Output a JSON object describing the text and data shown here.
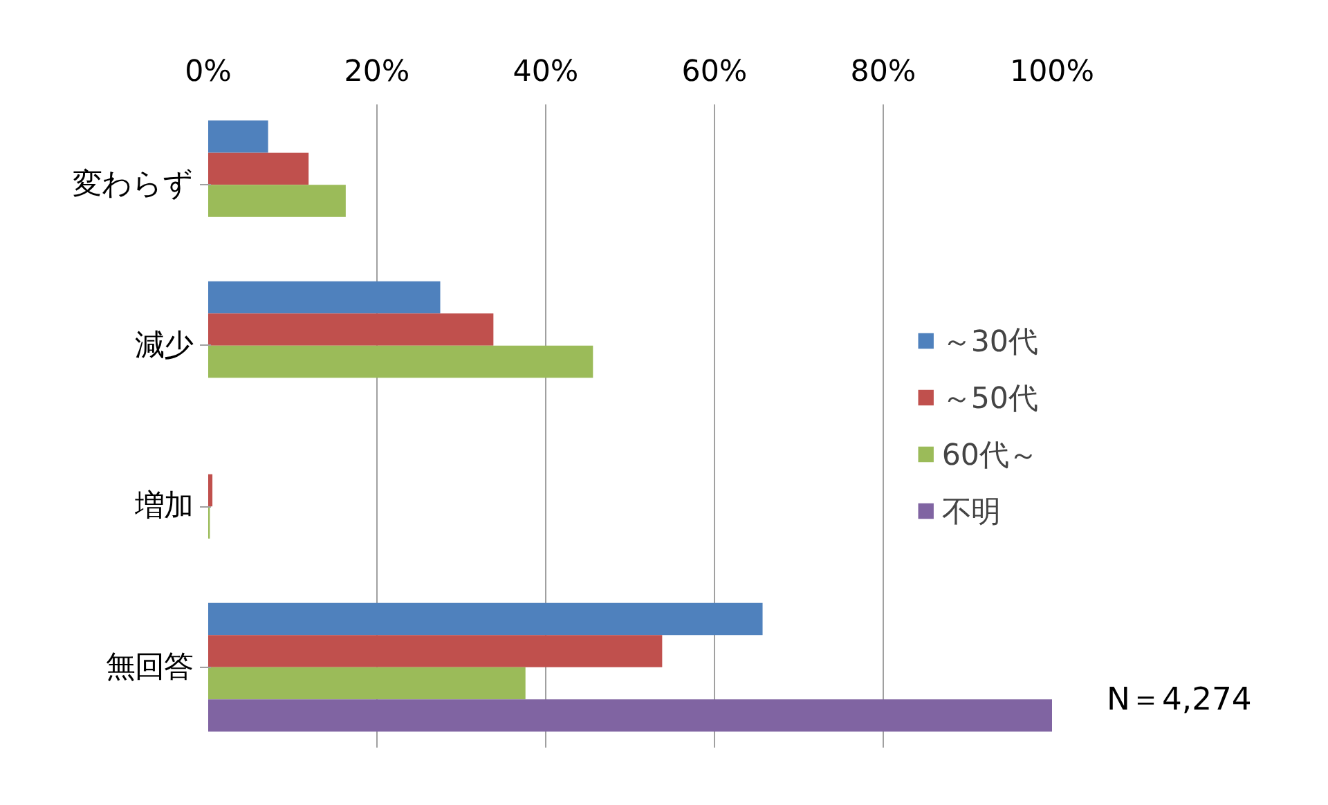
{
  "chart_data": {
    "type": "bar",
    "orientation": "horizontal",
    "categories": [
      "変わらず",
      "減少",
      "増加",
      "無回答"
    ],
    "series": [
      {
        "name": "～30代",
        "color": "#4f81bd",
        "values": [
          7.1,
          27.5,
          0,
          65.7
        ]
      },
      {
        "name": "～50代",
        "color": "#c0504d",
        "values": [
          11.9,
          33.8,
          0.5,
          53.8
        ]
      },
      {
        "name": "60代～",
        "color": "#9bbb59",
        "values": [
          16.3,
          45.6,
          0.2,
          37.6
        ]
      },
      {
        "name": "不明",
        "color": "#8064a2",
        "values": [
          null,
          null,
          null,
          100
        ]
      }
    ],
    "xlim": [
      0,
      100
    ],
    "xticks": [
      {
        "value": 0,
        "label": "0%"
      },
      {
        "value": 20,
        "label": "20%"
      },
      {
        "value": 40,
        "label": "40%"
      },
      {
        "value": 60,
        "label": "60%"
      },
      {
        "value": 80,
        "label": "80%"
      },
      {
        "value": 100,
        "label": "100%"
      }
    ],
    "grid": "x",
    "legend": "right",
    "annotations": [
      "N＝4,274"
    ]
  }
}
